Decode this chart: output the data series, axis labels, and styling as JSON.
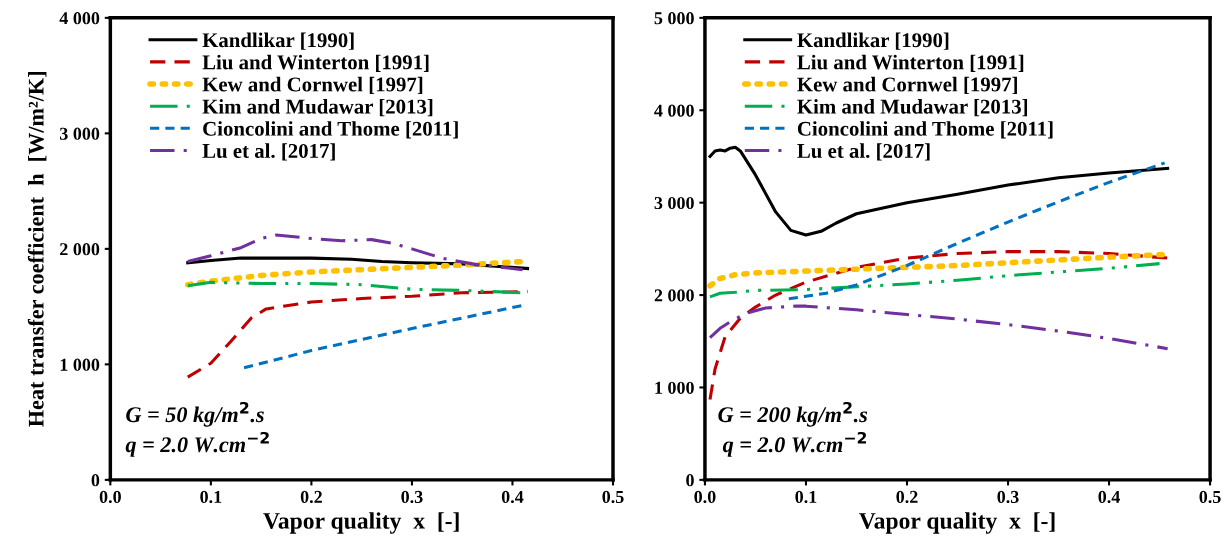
{
  "chart_data": [
    {
      "type": "line",
      "ylabel": "Heat transfer coefficient  h  [W/m²/K]",
      "xlabel": "Vapor quality  x  [-]",
      "xlim": [
        0,
        0.5
      ],
      "xticks": [
        {
          "value": 0,
          "label": "0.0"
        },
        0.1,
        0.2,
        0.3,
        0.4,
        0.5
      ],
      "ylim": [
        0,
        4000
      ],
      "yticks": [
        0,
        {
          "value": 1000,
          "label": "1 000"
        },
        {
          "value": 2000,
          "label": "2 000"
        },
        {
          "value": 3000,
          "label": "3 000"
        },
        {
          "value": 4000,
          "label": "4 000"
        }
      ],
      "legend": "top left",
      "grid": false,
      "marker": "none",
      "annotations": [
        "G = 50 kg/m$^{2}$.s",
        "q = 2.0 W.cm$^{−2}$"
      ],
      "series": [
        {
          "name": "Kandlikar [1990]",
          "color": "#000000",
          "line_style": "solid",
          "x": [
            0.077,
            0.1,
            0.13,
            0.2,
            0.24,
            0.27,
            0.3,
            0.35,
            0.415
          ],
          "values": [
            1880,
            1900,
            1920,
            1920,
            1910,
            1890,
            1880,
            1870,
            1830
          ]
        },
        {
          "name": "Liu and Winterton [1991]",
          "color": "#c00000",
          "line_style": "dashed",
          "x": [
            0.077,
            0.1,
            0.12,
            0.14,
            0.155,
            0.2,
            0.25,
            0.3,
            0.35,
            0.415
          ],
          "values": [
            890,
            1010,
            1200,
            1400,
            1480,
            1540,
            1570,
            1590,
            1620,
            1630
          ]
        },
        {
          "name": "Kew and Cornwel [1997]",
          "color": "#ffc000",
          "line_style": "dotted",
          "x": [
            0.077,
            0.1,
            0.15,
            0.2,
            0.25,
            0.3,
            0.35,
            0.41
          ],
          "values": [
            1690,
            1720,
            1770,
            1800,
            1820,
            1840,
            1860,
            1890
          ]
        },
        {
          "name": "Kim and Mudawar [2013]",
          "color": "#00b050",
          "line_style": "dashdotdot",
          "x": [
            0.077,
            0.1,
            0.15,
            0.2,
            0.25,
            0.3,
            0.35,
            0.41
          ],
          "values": [
            1680,
            1710,
            1700,
            1700,
            1690,
            1650,
            1640,
            1620
          ]
        },
        {
          "name": "Cioncolini and Thome [2011]",
          "color": "#0070c0",
          "line_style": "shortdash",
          "x": [
            0.133,
            0.2,
            0.3,
            0.41
          ],
          "values": [
            970,
            1120,
            1310,
            1510
          ]
        },
        {
          "name": "Lu et al. [2017]",
          "color": "#7030a0",
          "line_style": "dashdot",
          "x": [
            0.077,
            0.1,
            0.13,
            0.15,
            0.165,
            0.2,
            0.23,
            0.26,
            0.28,
            0.3,
            0.33,
            0.36,
            0.41
          ],
          "values": [
            1890,
            1940,
            2010,
            2090,
            2120,
            2090,
            2070,
            2080,
            2050,
            2000,
            1920,
            1870,
            1820
          ]
        }
      ]
    },
    {
      "type": "line",
      "xlabel": "Vapor quality  x  [-]",
      "xlim": [
        0,
        0.5
      ],
      "xticks": [
        {
          "value": 0,
          "label": "0.0"
        },
        0.1,
        0.2,
        0.3,
        0.4,
        0.5
      ],
      "ylim": [
        0,
        5000
      ],
      "yticks": [
        0,
        {
          "value": 1000,
          "label": "1 000"
        },
        {
          "value": 2000,
          "label": "2 000"
        },
        {
          "value": 3000,
          "label": "3 000"
        },
        {
          "value": 4000,
          "label": "4 000"
        },
        {
          "value": 5000,
          "label": "5 000"
        }
      ],
      "legend": "top left",
      "grid": false,
      "marker": "none",
      "annotations": [
        "G = 200 kg/m$^{2}$.s",
        "q = 2.0 W.cm$^{−2}$"
      ],
      "series": [
        {
          "name": "Kandlikar [1990]",
          "color": "#000000",
          "line_style": "solid",
          "x": [
            0.005,
            0.01,
            0.015,
            0.02,
            0.025,
            0.03,
            0.035,
            0.05,
            0.07,
            0.085,
            0.1,
            0.115,
            0.13,
            0.15,
            0.2,
            0.25,
            0.3,
            0.35,
            0.4,
            0.458
          ],
          "values": [
            3500,
            3560,
            3570,
            3560,
            3590,
            3600,
            3560,
            3300,
            2900,
            2700,
            2650,
            2690,
            2780,
            2880,
            3000,
            3090,
            3190,
            3270,
            3320,
            3370
          ]
        },
        {
          "name": "Liu and Winterton [1991]",
          "color": "#c00000",
          "line_style": "dashed",
          "x": [
            0.005,
            0.01,
            0.02,
            0.035,
            0.05,
            0.07,
            0.1,
            0.15,
            0.2,
            0.25,
            0.3,
            0.35,
            0.4,
            0.458
          ],
          "values": [
            870,
            1200,
            1550,
            1750,
            1870,
            2000,
            2140,
            2300,
            2400,
            2450,
            2470,
            2470,
            2450,
            2400
          ]
        },
        {
          "name": "Kew and Cornwel [1997]",
          "color": "#ffc000",
          "line_style": "dotted",
          "x": [
            0.005,
            0.015,
            0.03,
            0.05,
            0.1,
            0.15,
            0.2,
            0.25,
            0.3,
            0.35,
            0.4,
            0.458
          ],
          "values": [
            2100,
            2180,
            2220,
            2240,
            2260,
            2280,
            2300,
            2320,
            2350,
            2380,
            2410,
            2440
          ]
        },
        {
          "name": "Kim and Mudawar [2013]",
          "color": "#00b050",
          "line_style": "dashdotdot",
          "x": [
            0.005,
            0.015,
            0.03,
            0.05,
            0.1,
            0.15,
            0.2,
            0.25,
            0.3,
            0.35,
            0.4,
            0.45
          ],
          "values": [
            1980,
            2020,
            2030,
            2050,
            2060,
            2090,
            2120,
            2160,
            2210,
            2250,
            2290,
            2340
          ]
        },
        {
          "name": "Cioncolini and Thome [2011]",
          "color": "#0070c0",
          "line_style": "shortdash",
          "x": [
            0.083,
            0.12,
            0.15,
            0.2,
            0.25,
            0.3,
            0.35,
            0.4,
            0.455
          ],
          "values": [
            1960,
            2020,
            2110,
            2320,
            2560,
            2790,
            3010,
            3220,
            3430
          ]
        },
        {
          "name": "Lu et al. [2017]",
          "color": "#7030a0",
          "line_style": "dashdot",
          "x": [
            0.005,
            0.015,
            0.025,
            0.04,
            0.06,
            0.09,
            0.1,
            0.15,
            0.2,
            0.25,
            0.3,
            0.35,
            0.4,
            0.458
          ],
          "values": [
            1540,
            1640,
            1710,
            1800,
            1860,
            1880,
            1880,
            1840,
            1790,
            1740,
            1680,
            1610,
            1530,
            1420
          ]
        }
      ]
    }
  ]
}
